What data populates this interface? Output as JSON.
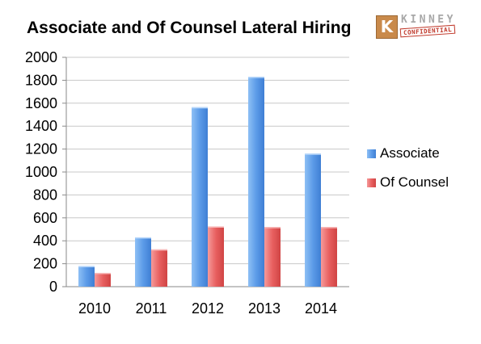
{
  "title": "Associate and Of Counsel Lateral Hiring",
  "logo": {
    "letter": "K",
    "name": "KINNEY",
    "stamp": "CONFIDENTIAL"
  },
  "colors": {
    "associate": "#5c9be8",
    "of_counsel": "#e85c5c",
    "grid": "#c8c8c8",
    "axis": "#8a8a8a"
  },
  "chart_data": {
    "type": "bar",
    "title": "Associate and Of Counsel Lateral Hiring",
    "categories": [
      "2010",
      "2011",
      "2012",
      "2013",
      "2014"
    ],
    "series": [
      {
        "name": "Associate",
        "values": [
          180,
          430,
          1565,
          1830,
          1160
        ]
      },
      {
        "name": "Of Counsel",
        "values": [
          120,
          325,
          525,
          520,
          520
        ]
      }
    ],
    "ylim": [
      0,
      2000
    ],
    "yticks": [
      "0",
      "200",
      "400",
      "600",
      "800",
      "1000",
      "1200",
      "1400",
      "1600",
      "1800",
      "2000"
    ],
    "xlabel": "",
    "ylabel": "",
    "grid": true,
    "legend": "right"
  }
}
